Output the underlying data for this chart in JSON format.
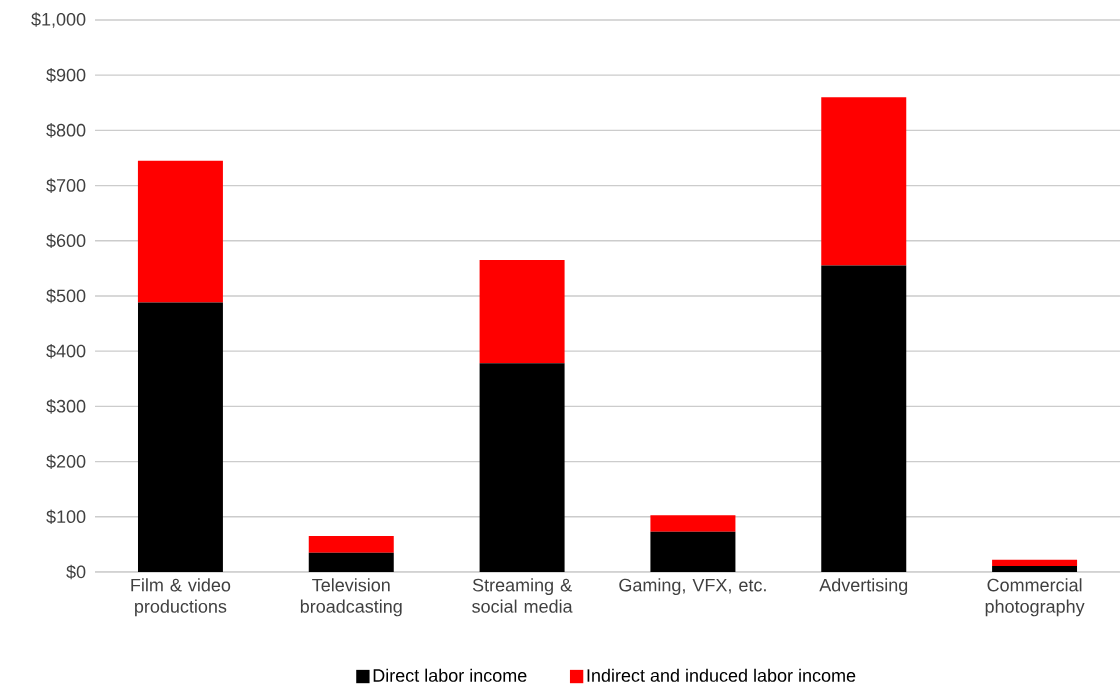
{
  "chart_data": {
    "type": "bar",
    "stacked": true,
    "categories": [
      "Film & video productions",
      "Television broadcasting",
      "Streaming & social media",
      "Gaming, VFX, etc.",
      "Advertising",
      "Commercial photography"
    ],
    "series": [
      {
        "name": "Direct labor income",
        "color": "#000000",
        "values": [
          488,
          35,
          378,
          73,
          555,
          11
        ]
      },
      {
        "name": "Indirect and induced labor income",
        "color": "#ff0000",
        "values": [
          257,
          30,
          187,
          30,
          305,
          11
        ]
      }
    ],
    "ylim": [
      0,
      1000
    ],
    "yticks": [
      {
        "value": 0,
        "label": "$0"
      },
      {
        "value": 100,
        "label": "$100"
      },
      {
        "value": 200,
        "label": "$200"
      },
      {
        "value": 300,
        "label": "$300"
      },
      {
        "value": 400,
        "label": "$400"
      },
      {
        "value": 500,
        "label": "$500"
      },
      {
        "value": 600,
        "label": "$600"
      },
      {
        "value": 700,
        "label": "$700"
      },
      {
        "value": 800,
        "label": "$800"
      },
      {
        "value": 900,
        "label": "$900"
      },
      {
        "value": 1000,
        "label": "$1,000"
      }
    ],
    "grid": "y",
    "legend": "bottom"
  }
}
